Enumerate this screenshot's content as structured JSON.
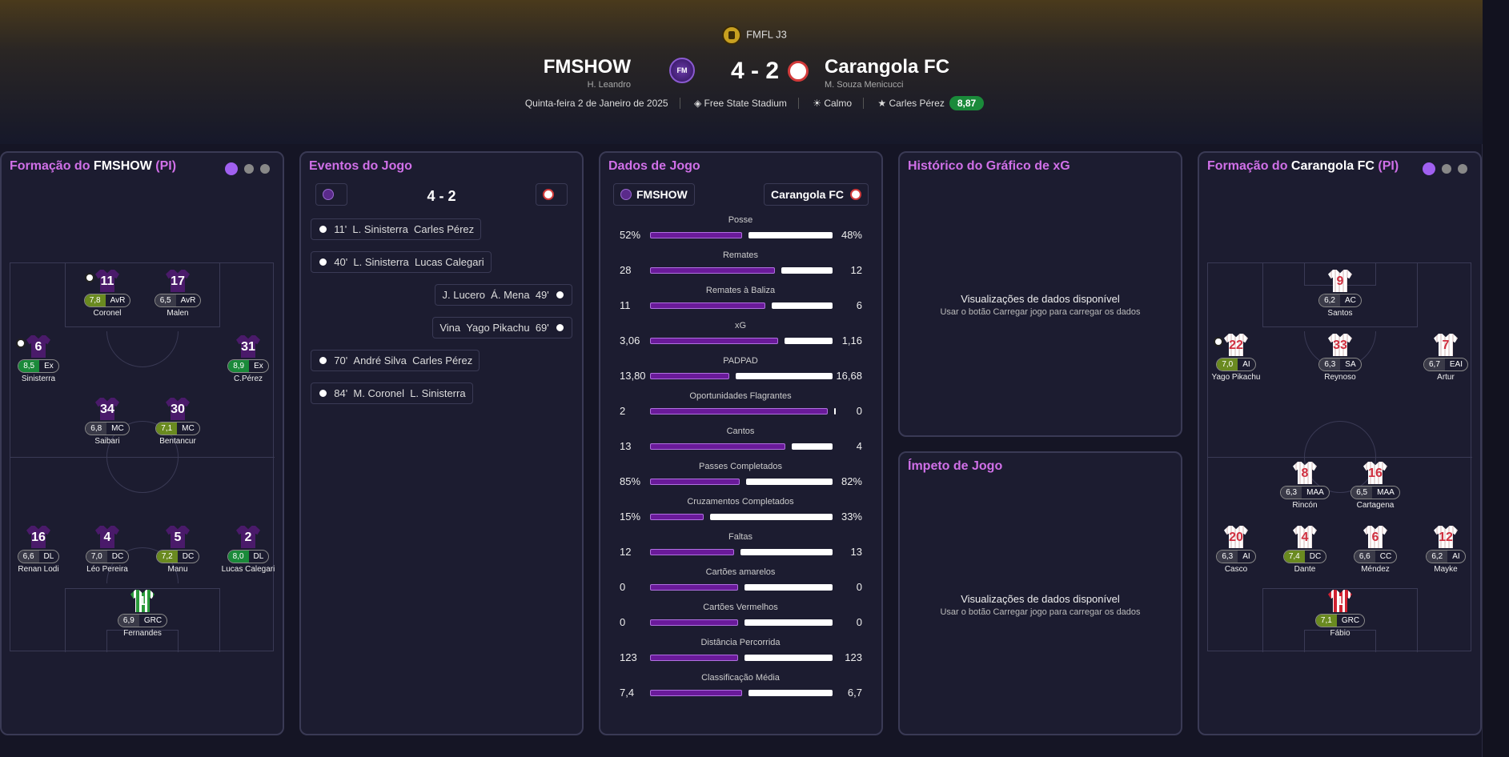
{
  "header": {
    "competition": "FMFL J3",
    "home": {
      "name": "FMSHOW",
      "manager": "H. Leandro",
      "crest_text": "FM"
    },
    "away": {
      "name": "Carangola FC",
      "manager": "M. Souza Menicucci"
    },
    "score": "4 - 2",
    "date": "Quinta-feira 2 de Janeiro de 2025",
    "stadium": "Free State Stadium",
    "weather": "Calmo",
    "potm_name": "Carles Pérez",
    "potm_rating": "8,87"
  },
  "home_lineup": {
    "title_prefix": "Formação do",
    "team": "FMSHOW",
    "suffix": "(PI)",
    "players": [
      {
        "num": "11",
        "rating": "7,8",
        "rclass": "g",
        "pos": "AvR",
        "name": "Coronel"
      },
      {
        "num": "17",
        "rating": "6,5",
        "rclass": "",
        "pos": "AvR",
        "name": "Malen"
      },
      {
        "num": "6",
        "rating": "8,5",
        "rclass": "gg",
        "pos": "Ex",
        "name": "Sinisterra"
      },
      {
        "num": "31",
        "rating": "8,9",
        "rclass": "gg",
        "pos": "Ex",
        "name": "C.Pérez"
      },
      {
        "num": "34",
        "rating": "6,8",
        "rclass": "",
        "pos": "MC",
        "name": "Saibari"
      },
      {
        "num": "30",
        "rating": "7,1",
        "rclass": "g",
        "pos": "MC",
        "name": "Bentancur"
      },
      {
        "num": "16",
        "rating": "6,6",
        "rclass": "",
        "pos": "DL",
        "name": "Renan Lodi"
      },
      {
        "num": "4",
        "rating": "7,0",
        "rclass": "",
        "pos": "DC",
        "name": "Léo Pereira"
      },
      {
        "num": "5",
        "rating": "7,2",
        "rclass": "g",
        "pos": "DC",
        "name": "Manu"
      },
      {
        "num": "2",
        "rating": "8,0",
        "rclass": "gg",
        "pos": "DL",
        "name": "Lucas Calegari"
      },
      {
        "num": "1",
        "rating": "6,9",
        "rclass": "",
        "pos": "GRC",
        "name": "Fernandes"
      }
    ]
  },
  "away_lineup": {
    "title_prefix": "Formação do",
    "team": "Carangola FC",
    "suffix": "(PI)",
    "players": [
      {
        "num": "9",
        "rating": "6,2",
        "rclass": "",
        "pos": "AC",
        "name": "Santos"
      },
      {
        "num": "22",
        "rating": "7,0",
        "rclass": "g",
        "pos": "AI",
        "name": "Yago Pikachu"
      },
      {
        "num": "33",
        "rating": "6,3",
        "rclass": "",
        "pos": "SA",
        "name": "Reynoso"
      },
      {
        "num": "7",
        "rating": "6,7",
        "rclass": "",
        "pos": "EAI",
        "name": "Artur"
      },
      {
        "num": "8",
        "rating": "6,3",
        "rclass": "",
        "pos": "MAA",
        "name": "Rincón"
      },
      {
        "num": "16",
        "rating": "6,5",
        "rclass": "",
        "pos": "MAA",
        "name": "Cartagena"
      },
      {
        "num": "20",
        "rating": "6,3",
        "rclass": "",
        "pos": "AI",
        "name": "Casco"
      },
      {
        "num": "4",
        "rating": "7,4",
        "rclass": "g",
        "pos": "DC",
        "name": "Dante"
      },
      {
        "num": "6",
        "rating": "6,6",
        "rclass": "",
        "pos": "CC",
        "name": "Méndez"
      },
      {
        "num": "12",
        "rating": "6,2",
        "rclass": "",
        "pos": "AI",
        "name": "Mayke"
      },
      {
        "num": "1",
        "rating": "7,1",
        "rclass": "g",
        "pos": "GRC",
        "name": "Fábio"
      }
    ]
  },
  "events": {
    "title": "Eventos do Jogo",
    "score": "4 - 2",
    "items": [
      {
        "text": "11'  L. Sinisterra  Carles Pérez",
        "side": "home"
      },
      {
        "text": "40'  L. Sinisterra  Lucas Calegari",
        "side": "home"
      },
      {
        "text": "J. Lucero  Á. Mena  49'",
        "side": "away"
      },
      {
        "text": "Vina  Yago Pikachu  69'",
        "side": "away"
      },
      {
        "text": "70'  André Silva  Carles Pérez",
        "side": "home"
      },
      {
        "text": "84'  M. Coronel  L. Sinisterra",
        "side": "home"
      }
    ]
  },
  "stats": {
    "title": "Dados de Jogo",
    "home": "FMSHOW",
    "away": "Carangola FC",
    "rows": [
      {
        "label": "Posse",
        "h": "52%",
        "a": "48%",
        "hf": 0.52
      },
      {
        "label": "Remates",
        "h": "28",
        "a": "12",
        "hf": 0.7
      },
      {
        "label": "Remates à Baliza",
        "h": "11",
        "a": "6",
        "hf": 0.65
      },
      {
        "label": "xG",
        "h": "3,06",
        "a": "1,16",
        "hf": 0.72
      },
      {
        "label": "PADPAD",
        "h": "13,80",
        "a": "16,68",
        "hf": 0.45
      },
      {
        "label": "Oportunidades Flagrantes",
        "h": "2",
        "a": "0",
        "hf": 0.99
      },
      {
        "label": "Cantos",
        "h": "13",
        "a": "4",
        "hf": 0.76
      },
      {
        "label": "Passes Completados",
        "h": "85%",
        "a": "82%",
        "hf": 0.51
      },
      {
        "label": "Cruzamentos Completados",
        "h": "15%",
        "a": "33%",
        "hf": 0.31
      },
      {
        "label": "Faltas",
        "h": "12",
        "a": "13",
        "hf": 0.48
      },
      {
        "label": "Cartões amarelos",
        "h": "0",
        "a": "0",
        "hf": 0.5
      },
      {
        "label": "Cartões Vermelhos",
        "h": "0",
        "a": "0",
        "hf": 0.5
      },
      {
        "label": "Distância Percorrida",
        "h": "123",
        "a": "123",
        "hf": 0.5
      },
      {
        "label": "Classificação Média",
        "h": "7,4",
        "a": "6,7",
        "hf": 0.52
      }
    ]
  },
  "xg": {
    "title": "Histórico do Gráfico de xG",
    "empty_title": "Visualizações de dados disponível",
    "empty_sub": "Usar o botão Carregar jogo para carregar os dados"
  },
  "momentum": {
    "title": "Ímpeto de Jogo",
    "empty_title": "Visualizações de dados disponível",
    "empty_sub": "Usar o botão Carregar jogo para carregar os dados"
  },
  "colors": {
    "accent": "#d070e8",
    "home_bar": "#6a1a9a",
    "away_bar": "#ffffff",
    "good_rating": "#1a8a3a"
  }
}
